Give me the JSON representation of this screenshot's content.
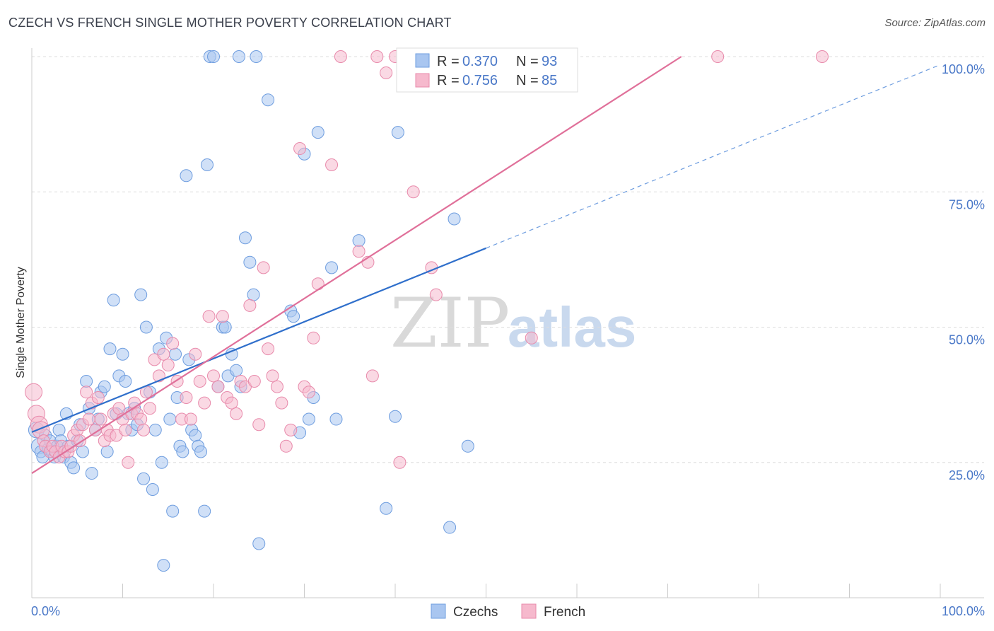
{
  "header": {
    "title": "CZECH VS FRENCH SINGLE MOTHER POVERTY CORRELATION CHART",
    "source": "Source: ZipAtlas.com"
  },
  "watermark": {
    "zip": "ZIP",
    "atlas": "atlas"
  },
  "chart_data": {
    "type": "scatter",
    "title": "CZECH VS FRENCH SINGLE MOTHER POVERTY CORRELATION CHART",
    "xlabel": "",
    "ylabel": "Single Mother Poverty",
    "xlim": [
      0,
      100
    ],
    "ylim": [
      0,
      100
    ],
    "x_tick_labels": [
      "0.0%",
      "100.0%"
    ],
    "y_tick_labels": [
      "25.0%",
      "50.0%",
      "75.0%",
      "100.0%"
    ],
    "y_ticks": [
      25,
      50,
      75,
      100
    ],
    "legend": {
      "placement": "top-center",
      "entries": [
        {
          "name": "Czechs",
          "r_label": "R = ",
          "r": "0.370",
          "n_label": "N = ",
          "n": "93",
          "color": "#a9c6f0",
          "line_color": "#2f6fcb"
        },
        {
          "name": "French",
          "r_label": "R = ",
          "r": "0.756",
          "n_label": "N = ",
          "n": "85",
          "color": "#f6b9cd",
          "line_color": "#e0709a"
        }
      ]
    },
    "series": [
      {
        "name": "Czechs",
        "color": "#a9c6f0",
        "stroke": "#6e9ddf",
        "trend": {
          "x0": 0,
          "y0": 30.6,
          "x1": 50,
          "y1": 64.6,
          "dash_to_x": 100,
          "dash_to_y": 98.5
        },
        "points": [
          [
            0.5,
            31
          ],
          [
            0.8,
            28
          ],
          [
            1,
            27
          ],
          [
            1.2,
            26
          ],
          [
            1.5,
            30
          ],
          [
            1.8,
            27.5
          ],
          [
            2,
            29
          ],
          [
            2.2,
            27
          ],
          [
            2.5,
            26
          ],
          [
            2.8,
            28
          ],
          [
            3,
            31
          ],
          [
            3.2,
            29
          ],
          [
            3.5,
            26
          ],
          [
            3.8,
            34
          ],
          [
            4,
            28
          ],
          [
            4.3,
            25
          ],
          [
            4.6,
            24
          ],
          [
            5,
            29
          ],
          [
            5.3,
            32
          ],
          [
            5.6,
            27
          ],
          [
            6,
            40
          ],
          [
            6.3,
            35
          ],
          [
            6.6,
            23
          ],
          [
            7,
            31
          ],
          [
            7.3,
            33
          ],
          [
            7.6,
            38
          ],
          [
            8,
            39
          ],
          [
            8.3,
            27
          ],
          [
            8.6,
            46
          ],
          [
            9,
            55
          ],
          [
            9.3,
            34
          ],
          [
            9.6,
            41
          ],
          [
            10,
            45
          ],
          [
            10.3,
            40
          ],
          [
            10.6,
            34
          ],
          [
            11,
            31
          ],
          [
            11.3,
            35
          ],
          [
            11.6,
            32
          ],
          [
            12,
            56
          ],
          [
            12.3,
            22
          ],
          [
            12.6,
            50
          ],
          [
            13,
            38
          ],
          [
            13.3,
            20
          ],
          [
            13.6,
            31
          ],
          [
            14,
            46
          ],
          [
            14.3,
            25
          ],
          [
            14.5,
            6
          ],
          [
            14.8,
            48
          ],
          [
            15.2,
            33
          ],
          [
            15.5,
            16
          ],
          [
            15.8,
            45
          ],
          [
            16,
            37
          ],
          [
            16.3,
            28
          ],
          [
            16.6,
            27
          ],
          [
            17,
            78
          ],
          [
            17.3,
            44
          ],
          [
            17.6,
            31
          ],
          [
            18,
            30
          ],
          [
            18.3,
            28
          ],
          [
            18.6,
            27
          ],
          [
            19,
            16
          ],
          [
            19.3,
            80
          ],
          [
            19.6,
            100
          ],
          [
            20,
            100
          ],
          [
            20.5,
            39
          ],
          [
            21,
            50
          ],
          [
            21.3,
            50
          ],
          [
            21.6,
            41
          ],
          [
            22,
            45
          ],
          [
            22.5,
            42
          ],
          [
            22.8,
            100
          ],
          [
            23,
            39
          ],
          [
            23.5,
            66.5
          ],
          [
            24,
            62
          ],
          [
            24.4,
            56
          ],
          [
            24.7,
            100
          ],
          [
            25,
            10
          ],
          [
            26,
            92
          ],
          [
            28.5,
            53
          ],
          [
            28.8,
            52
          ],
          [
            29.5,
            30.5
          ],
          [
            30,
            82
          ],
          [
            30.5,
            33
          ],
          [
            31,
            37
          ],
          [
            31.5,
            86
          ],
          [
            33,
            61
          ],
          [
            33.5,
            33
          ],
          [
            36,
            66
          ],
          [
            39,
            16.5
          ],
          [
            40,
            33.5
          ],
          [
            40.3,
            86
          ],
          [
            46,
            13
          ],
          [
            46.5,
            70
          ],
          [
            48,
            28
          ]
        ]
      },
      {
        "name": "French",
        "color": "#f6b9cd",
        "stroke": "#e88aab",
        "trend": {
          "x0": 0,
          "y0": 23,
          "x1": 71.5,
          "y1": 100
        },
        "points": [
          [
            0.2,
            38
          ],
          [
            0.5,
            34
          ],
          [
            0.8,
            32
          ],
          [
            1,
            31
          ],
          [
            1.3,
            29
          ],
          [
            1.5,
            28
          ],
          [
            2,
            27
          ],
          [
            2.3,
            28
          ],
          [
            2.6,
            27
          ],
          [
            3,
            26
          ],
          [
            3.3,
            28
          ],
          [
            3.6,
            27
          ],
          [
            4,
            27
          ],
          [
            4.3,
            28
          ],
          [
            4.6,
            30
          ],
          [
            5,
            31
          ],
          [
            5.3,
            29
          ],
          [
            5.6,
            32
          ],
          [
            6,
            38
          ],
          [
            6.3,
            33
          ],
          [
            6.6,
            36
          ],
          [
            7,
            31
          ],
          [
            7.3,
            37
          ],
          [
            7.6,
            33
          ],
          [
            8,
            29
          ],
          [
            8.3,
            31
          ],
          [
            8.6,
            30
          ],
          [
            9,
            34
          ],
          [
            9.3,
            30
          ],
          [
            9.6,
            35
          ],
          [
            10,
            33
          ],
          [
            10.3,
            31
          ],
          [
            10.6,
            25
          ],
          [
            11,
            34
          ],
          [
            11.3,
            36
          ],
          [
            11.6,
            34
          ],
          [
            12,
            33
          ],
          [
            12.3,
            31
          ],
          [
            12.6,
            38
          ],
          [
            13,
            35
          ],
          [
            13.5,
            44
          ],
          [
            14,
            41
          ],
          [
            14.5,
            45
          ],
          [
            15,
            43
          ],
          [
            15.5,
            47
          ],
          [
            16,
            40
          ],
          [
            16.5,
            33
          ],
          [
            17,
            37
          ],
          [
            17.5,
            33
          ],
          [
            18,
            45
          ],
          [
            18.5,
            40
          ],
          [
            19,
            36
          ],
          [
            19.5,
            52
          ],
          [
            20,
            41
          ],
          [
            20.5,
            39
          ],
          [
            21,
            52
          ],
          [
            21.5,
            37
          ],
          [
            22,
            36
          ],
          [
            22.5,
            34
          ],
          [
            23,
            40
          ],
          [
            23.5,
            39
          ],
          [
            24,
            54
          ],
          [
            24.5,
            40
          ],
          [
            25,
            32
          ],
          [
            25.5,
            61
          ],
          [
            26,
            46
          ],
          [
            26.5,
            41
          ],
          [
            27,
            39
          ],
          [
            27.5,
            36
          ],
          [
            28,
            28
          ],
          [
            28.5,
            31
          ],
          [
            29.5,
            83
          ],
          [
            30,
            39
          ],
          [
            30.5,
            38
          ],
          [
            31,
            48
          ],
          [
            31.5,
            58
          ],
          [
            33,
            80
          ],
          [
            34,
            100
          ],
          [
            36,
            64
          ],
          [
            37,
            62
          ],
          [
            37.5,
            41
          ],
          [
            38,
            100
          ],
          [
            39,
            97
          ],
          [
            40,
            100
          ],
          [
            40.5,
            25
          ],
          [
            42,
            75
          ],
          [
            44,
            61
          ],
          [
            44.5,
            56
          ],
          [
            55,
            48
          ],
          [
            75.5,
            100
          ],
          [
            87,
            100
          ]
        ]
      }
    ]
  }
}
